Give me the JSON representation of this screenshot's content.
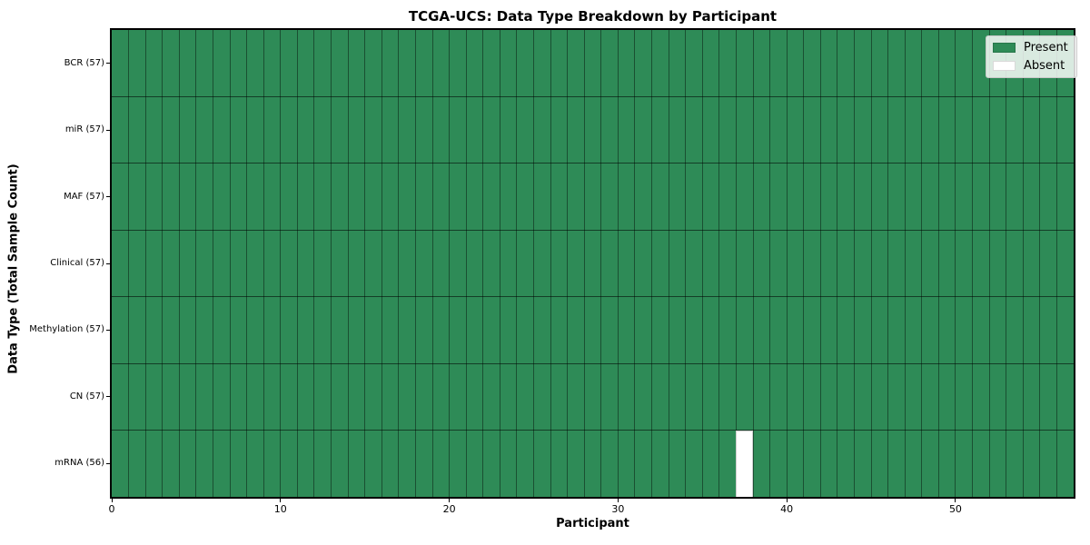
{
  "title": "TCGA-UCS: Data Type Breakdown by Participant",
  "xlabel": "Participant",
  "ylabel": "Data Type (Total Sample Count)",
  "colors": {
    "present": "#2e8b57",
    "absent": "#ffffff",
    "cell_border": "rgba(0,0,0,0.45)",
    "spine": "#000000"
  },
  "chart_data": {
    "type": "heatmap",
    "title": "TCGA-UCS: Data Type Breakdown by Participant",
    "xlabel": "Participant",
    "ylabel": "Data Type (Total Sample Count)",
    "n_participants": 57,
    "xlim": [
      0,
      57
    ],
    "x_ticks": [
      0,
      10,
      20,
      30,
      40,
      50
    ],
    "legend_position": "upper right",
    "grid": true,
    "rows": [
      {
        "label": "BCR (57)",
        "data_type": "BCR",
        "present_count": 57,
        "absent_participants": []
      },
      {
        "label": "miR (57)",
        "data_type": "miR",
        "present_count": 57,
        "absent_participants": []
      },
      {
        "label": "MAF (57)",
        "data_type": "MAF",
        "present_count": 57,
        "absent_participants": []
      },
      {
        "label": "Clinical (57)",
        "data_type": "Clinical",
        "present_count": 57,
        "absent_participants": []
      },
      {
        "label": "Methylation (57)",
        "data_type": "Methylation",
        "present_count": 57,
        "absent_participants": []
      },
      {
        "label": "CN (57)",
        "data_type": "CN",
        "present_count": 57,
        "absent_participants": []
      },
      {
        "label": "mRNA (56)",
        "data_type": "mRNA",
        "present_count": 56,
        "absent_participants": [
          37
        ]
      }
    ],
    "legend_entries": [
      {
        "label": "Present",
        "color": "#2e8b57"
      },
      {
        "label": "Absent",
        "color": "#ffffff"
      }
    ]
  }
}
